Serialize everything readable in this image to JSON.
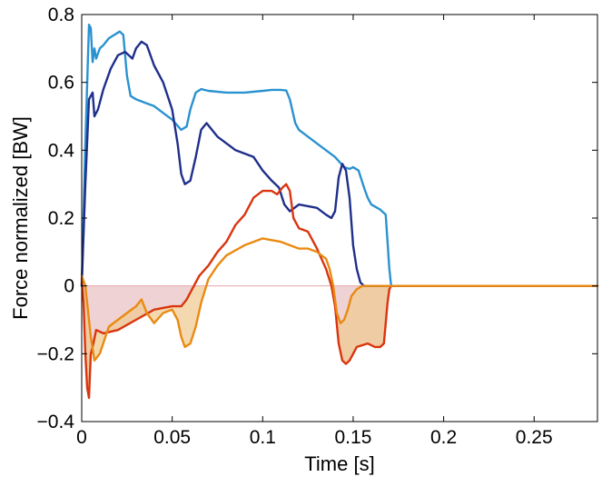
{
  "chart_data": {
    "type": "line",
    "title": "",
    "xlabel": "Time [s]",
    "ylabel": "Force normalized [BW]",
    "xlim": [
      0,
      0.285
    ],
    "ylim": [
      -0.4,
      0.8
    ],
    "xticks": [
      0,
      0.05,
      0.1,
      0.15,
      0.2,
      0.25
    ],
    "xtick_labels": [
      "0",
      "0.05",
      "0.1",
      "0.15",
      "0.2",
      "0.25"
    ],
    "yticks": [
      -0.4,
      -0.2,
      0,
      0.2,
      0.4,
      0.6,
      0.8
    ],
    "ytick_labels": [
      "−0.4",
      "−0.2",
      "0",
      "0.2",
      "0.4",
      "0.6",
      "0.8"
    ],
    "grid": false,
    "shaded_areas": [
      {
        "between": "red-series and zero",
        "color": "#e8c3c5"
      },
      {
        "between": "orange-series and red-series",
        "color": "#f0c98e"
      }
    ],
    "series": [
      {
        "color": "#2a92d0",
        "x": [
          0,
          0.002,
          0.004,
          0.005,
          0.006,
          0.007,
          0.008,
          0.01,
          0.012,
          0.015,
          0.018,
          0.021,
          0.023,
          0.025,
          0.027,
          0.03,
          0.035,
          0.04,
          0.045,
          0.05,
          0.055,
          0.058,
          0.06,
          0.063,
          0.066,
          0.07,
          0.08,
          0.09,
          0.1,
          0.105,
          0.11,
          0.113,
          0.115,
          0.118,
          0.12,
          0.13,
          0.14,
          0.145,
          0.148,
          0.15,
          0.153,
          0.156,
          0.158,
          0.16,
          0.165,
          0.168,
          0.17,
          0.171,
          0.2,
          0.25,
          0.285
        ],
        "y": [
          0,
          0.42,
          0.77,
          0.76,
          0.66,
          0.7,
          0.67,
          0.7,
          0.71,
          0.73,
          0.74,
          0.75,
          0.74,
          0.62,
          0.56,
          0.55,
          0.54,
          0.53,
          0.51,
          0.49,
          0.46,
          0.47,
          0.52,
          0.57,
          0.58,
          0.575,
          0.57,
          0.57,
          0.575,
          0.578,
          0.578,
          0.576,
          0.55,
          0.48,
          0.46,
          0.42,
          0.38,
          0.35,
          0.345,
          0.35,
          0.34,
          0.29,
          0.26,
          0.24,
          0.225,
          0.21,
          0.05,
          0,
          0,
          0,
          0
        ]
      },
      {
        "color": "#1f2f8a",
        "x": [
          0,
          0.002,
          0.004,
          0.006,
          0.007,
          0.009,
          0.012,
          0.016,
          0.02,
          0.024,
          0.028,
          0.03,
          0.033,
          0.036,
          0.04,
          0.045,
          0.05,
          0.053,
          0.055,
          0.057,
          0.06,
          0.063,
          0.066,
          0.069,
          0.075,
          0.085,
          0.095,
          0.1,
          0.105,
          0.109,
          0.112,
          0.115,
          0.12,
          0.13,
          0.135,
          0.138,
          0.14,
          0.142,
          0.144,
          0.146,
          0.148,
          0.15,
          0.152,
          0.154,
          0.156,
          0.2,
          0.25,
          0.285
        ],
        "y": [
          0,
          0.3,
          0.55,
          0.57,
          0.5,
          0.52,
          0.58,
          0.64,
          0.68,
          0.69,
          0.67,
          0.7,
          0.72,
          0.71,
          0.65,
          0.6,
          0.52,
          0.42,
          0.33,
          0.3,
          0.31,
          0.38,
          0.46,
          0.48,
          0.44,
          0.4,
          0.38,
          0.34,
          0.31,
          0.29,
          0.24,
          0.22,
          0.24,
          0.23,
          0.21,
          0.2,
          0.22,
          0.32,
          0.36,
          0.34,
          0.26,
          0.12,
          0.05,
          0.01,
          0,
          0,
          0,
          0
        ]
      },
      {
        "color": "#d9350f",
        "x": [
          0,
          0.001,
          0.002,
          0.003,
          0.004,
          0.005,
          0.006,
          0.008,
          0.012,
          0.02,
          0.03,
          0.04,
          0.05,
          0.055,
          0.058,
          0.06,
          0.065,
          0.07,
          0.075,
          0.08,
          0.085,
          0.09,
          0.095,
          0.1,
          0.105,
          0.108,
          0.111,
          0.113,
          0.115,
          0.117,
          0.12,
          0.125,
          0.13,
          0.135,
          0.138,
          0.14,
          0.142,
          0.144,
          0.146,
          0.148,
          0.152,
          0.158,
          0.162,
          0.165,
          0.167,
          0.169,
          0.17,
          0.171,
          0.2,
          0.25,
          0.285
        ],
        "y": [
          0.02,
          -0.05,
          -0.2,
          -0.3,
          -0.33,
          -0.2,
          -0.18,
          -0.13,
          -0.14,
          -0.13,
          -0.1,
          -0.07,
          -0.06,
          -0.06,
          -0.04,
          -0.02,
          0.03,
          0.06,
          0.1,
          0.13,
          0.18,
          0.21,
          0.26,
          0.28,
          0.28,
          0.27,
          0.29,
          0.3,
          0.28,
          0.2,
          0.17,
          0.16,
          0.11,
          0.05,
          0,
          -0.06,
          -0.17,
          -0.22,
          -0.23,
          -0.22,
          -0.18,
          -0.17,
          -0.18,
          -0.18,
          -0.17,
          -0.05,
          -0.01,
          0,
          0,
          0,
          0
        ]
      },
      {
        "color": "#e98a12",
        "x": [
          0,
          0.002,
          0.003,
          0.004,
          0.005,
          0.007,
          0.01,
          0.015,
          0.02,
          0.025,
          0.03,
          0.033,
          0.036,
          0.04,
          0.045,
          0.05,
          0.053,
          0.055,
          0.057,
          0.06,
          0.063,
          0.066,
          0.07,
          0.075,
          0.08,
          0.09,
          0.1,
          0.105,
          0.11,
          0.115,
          0.12,
          0.125,
          0.13,
          0.135,
          0.137,
          0.139,
          0.141,
          0.143,
          0.145,
          0.147,
          0.149,
          0.152,
          0.155,
          0.2,
          0.25,
          0.285
        ],
        "y": [
          0.03,
          0,
          -0.05,
          -0.1,
          -0.15,
          -0.22,
          -0.2,
          -0.12,
          -0.1,
          -0.08,
          -0.06,
          -0.04,
          -0.08,
          -0.11,
          -0.08,
          -0.07,
          -0.1,
          -0.15,
          -0.18,
          -0.17,
          -0.12,
          -0.05,
          0.02,
          0.06,
          0.09,
          0.12,
          0.14,
          0.135,
          0.13,
          0.12,
          0.11,
          0.11,
          0.1,
          0.08,
          0.05,
          0,
          -0.08,
          -0.11,
          -0.1,
          -0.07,
          -0.03,
          -0.01,
          0,
          0,
          0,
          0
        ]
      }
    ]
  }
}
